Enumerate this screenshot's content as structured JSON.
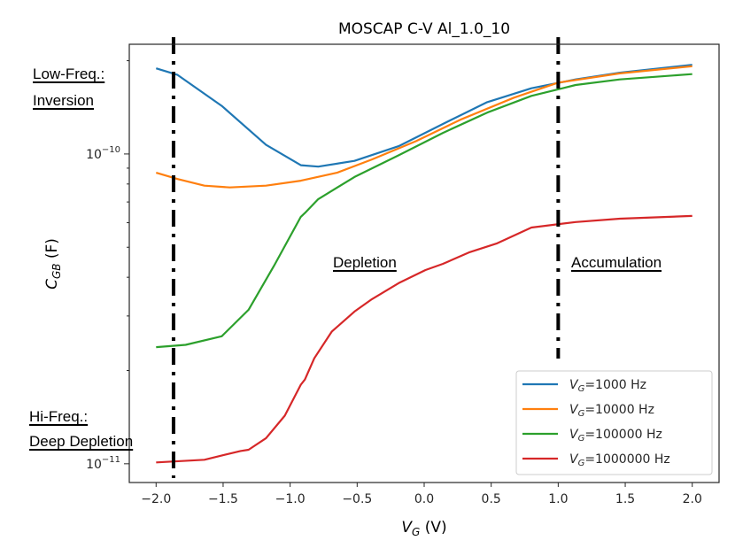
{
  "chart_data": {
    "type": "line",
    "title": "MOSCAP C-V Al_1.0_10",
    "xlabel": {
      "main": "V",
      "sub": "G",
      "unit": " (V)"
    },
    "ylabel": {
      "main": "C",
      "sub": "GB",
      "unit": " (F)"
    },
    "xscale": "linear",
    "yscale": "log",
    "xlim": [
      -2.2,
      2.2
    ],
    "ylim": [
      8.7e-12,
      2.26e-10
    ],
    "grid": false,
    "xticks": [
      -2.0,
      -1.5,
      -1.0,
      -0.5,
      0.0,
      0.5,
      1.0,
      1.5,
      2.0
    ],
    "xtick_labels": [
      "−2.0",
      "−1.5",
      "−1.0",
      "−0.5",
      "0.0",
      "0.5",
      "1.0",
      "1.5",
      "2.0"
    ],
    "yticks_major": [
      1e-11,
      1e-10
    ],
    "ytick_labels": [
      {
        "base": "10",
        "exp": "−11"
      },
      {
        "base": "10",
        "exp": "−10"
      }
    ],
    "yticks_minor": [
      2e-11,
      3e-11,
      4e-11,
      5e-11,
      6e-11,
      7e-11,
      8e-11,
      9e-11,
      2e-10
    ],
    "legend": {
      "placement": "lower-right",
      "entries": [
        {
          "prefix": "V",
          "sub": "G",
          "text": "=1000 Hz",
          "color": "#1f77b4"
        },
        {
          "prefix": "V",
          "sub": "G",
          "text": "=10000 Hz",
          "color": "#ff7f0e"
        },
        {
          "prefix": "V",
          "sub": "G",
          "text": "=100000 Hz",
          "color": "#2ca02c"
        },
        {
          "prefix": "V",
          "sub": "G",
          "text": "=1000000 Hz",
          "color": "#d62728"
        }
      ]
    },
    "series": [
      {
        "name": "VG=1000 Hz",
        "color": "#1f77b4",
        "x": [
          -2.0,
          -1.84,
          -1.51,
          -1.18,
          -0.92,
          -0.79,
          -0.52,
          -0.19,
          0.14,
          0.47,
          0.8,
          1.13,
          1.46,
          2.0
        ],
        "y": [
          1.89e-10,
          1.8e-10,
          1.43e-10,
          1.07e-10,
          9.2e-11,
          9.1e-11,
          9.5e-11,
          1.06e-10,
          1.25e-10,
          1.47e-10,
          1.63e-10,
          1.74e-10,
          1.83e-10,
          1.94e-10
        ]
      },
      {
        "name": "VG=10000 Hz",
        "color": "#ff7f0e",
        "x": [
          -2.0,
          -1.84,
          -1.64,
          -1.45,
          -1.18,
          -0.92,
          -0.65,
          -0.39,
          -0.06,
          0.27,
          0.67,
          1.0,
          1.46,
          2.0
        ],
        "y": [
          8.7e-11,
          8.3e-11,
          7.9e-11,
          7.8e-11,
          7.9e-11,
          8.2e-11,
          8.7e-11,
          9.6e-11,
          1.1e-10,
          1.29e-10,
          1.52e-10,
          1.7e-10,
          1.82e-10,
          1.92e-10
        ]
      },
      {
        "name": "VG=100000 Hz",
        "color": "#2ca02c",
        "x": [
          -2.0,
          -1.78,
          -1.51,
          -1.31,
          -1.12,
          -0.92,
          -0.89,
          -0.79,
          -0.52,
          -0.19,
          0.14,
          0.47,
          0.8,
          1.13,
          1.46,
          2.0
        ],
        "y": [
          2.38e-11,
          2.42e-11,
          2.58e-11,
          3.14e-11,
          4.36e-11,
          6.27e-11,
          6.45e-11,
          7.15e-11,
          8.43e-11,
          9.9e-11,
          1.17e-10,
          1.36e-10,
          1.54e-10,
          1.67e-10,
          1.74e-10,
          1.81e-10
        ]
      },
      {
        "name": "VG=1000000 Hz",
        "color": "#d62728",
        "x": [
          -2.0,
          -1.64,
          -1.37,
          -1.31,
          -1.18,
          -1.04,
          -0.92,
          -0.89,
          -0.82,
          -0.69,
          -0.52,
          -0.39,
          -0.19,
          0.01,
          0.14,
          0.34,
          0.54,
          0.8,
          1.13,
          1.46,
          2.0
        ],
        "y": [
          1.01e-11,
          1.03e-11,
          1.1e-11,
          1.11e-11,
          1.21e-11,
          1.43e-11,
          1.8e-11,
          1.87e-11,
          2.19e-11,
          2.67e-11,
          3.1e-11,
          3.4e-11,
          3.83e-11,
          4.22e-11,
          4.42e-11,
          4.82e-11,
          5.14e-11,
          5.79e-11,
          6.03e-11,
          6.18e-11,
          6.31e-11
        ]
      }
    ],
    "vlines": [
      {
        "x": -1.87,
        "style": "dash-dot",
        "color": "#000000"
      },
      {
        "x": 1.0,
        "style": "dash-dot",
        "color": "#000000"
      }
    ],
    "annotations": [
      {
        "id": "low-freq",
        "lines": [
          "Low-Freq.:",
          "Inversion"
        ],
        "underline": true
      },
      {
        "id": "hi-freq",
        "lines": [
          "Hi-Freq.:",
          "Deep Depletion"
        ],
        "underline": true
      },
      {
        "id": "depletion",
        "lines": [
          "Depletion"
        ],
        "underline": true
      },
      {
        "id": "accumulation",
        "lines": [
          "Accumulation"
        ],
        "underline": true
      }
    ]
  }
}
